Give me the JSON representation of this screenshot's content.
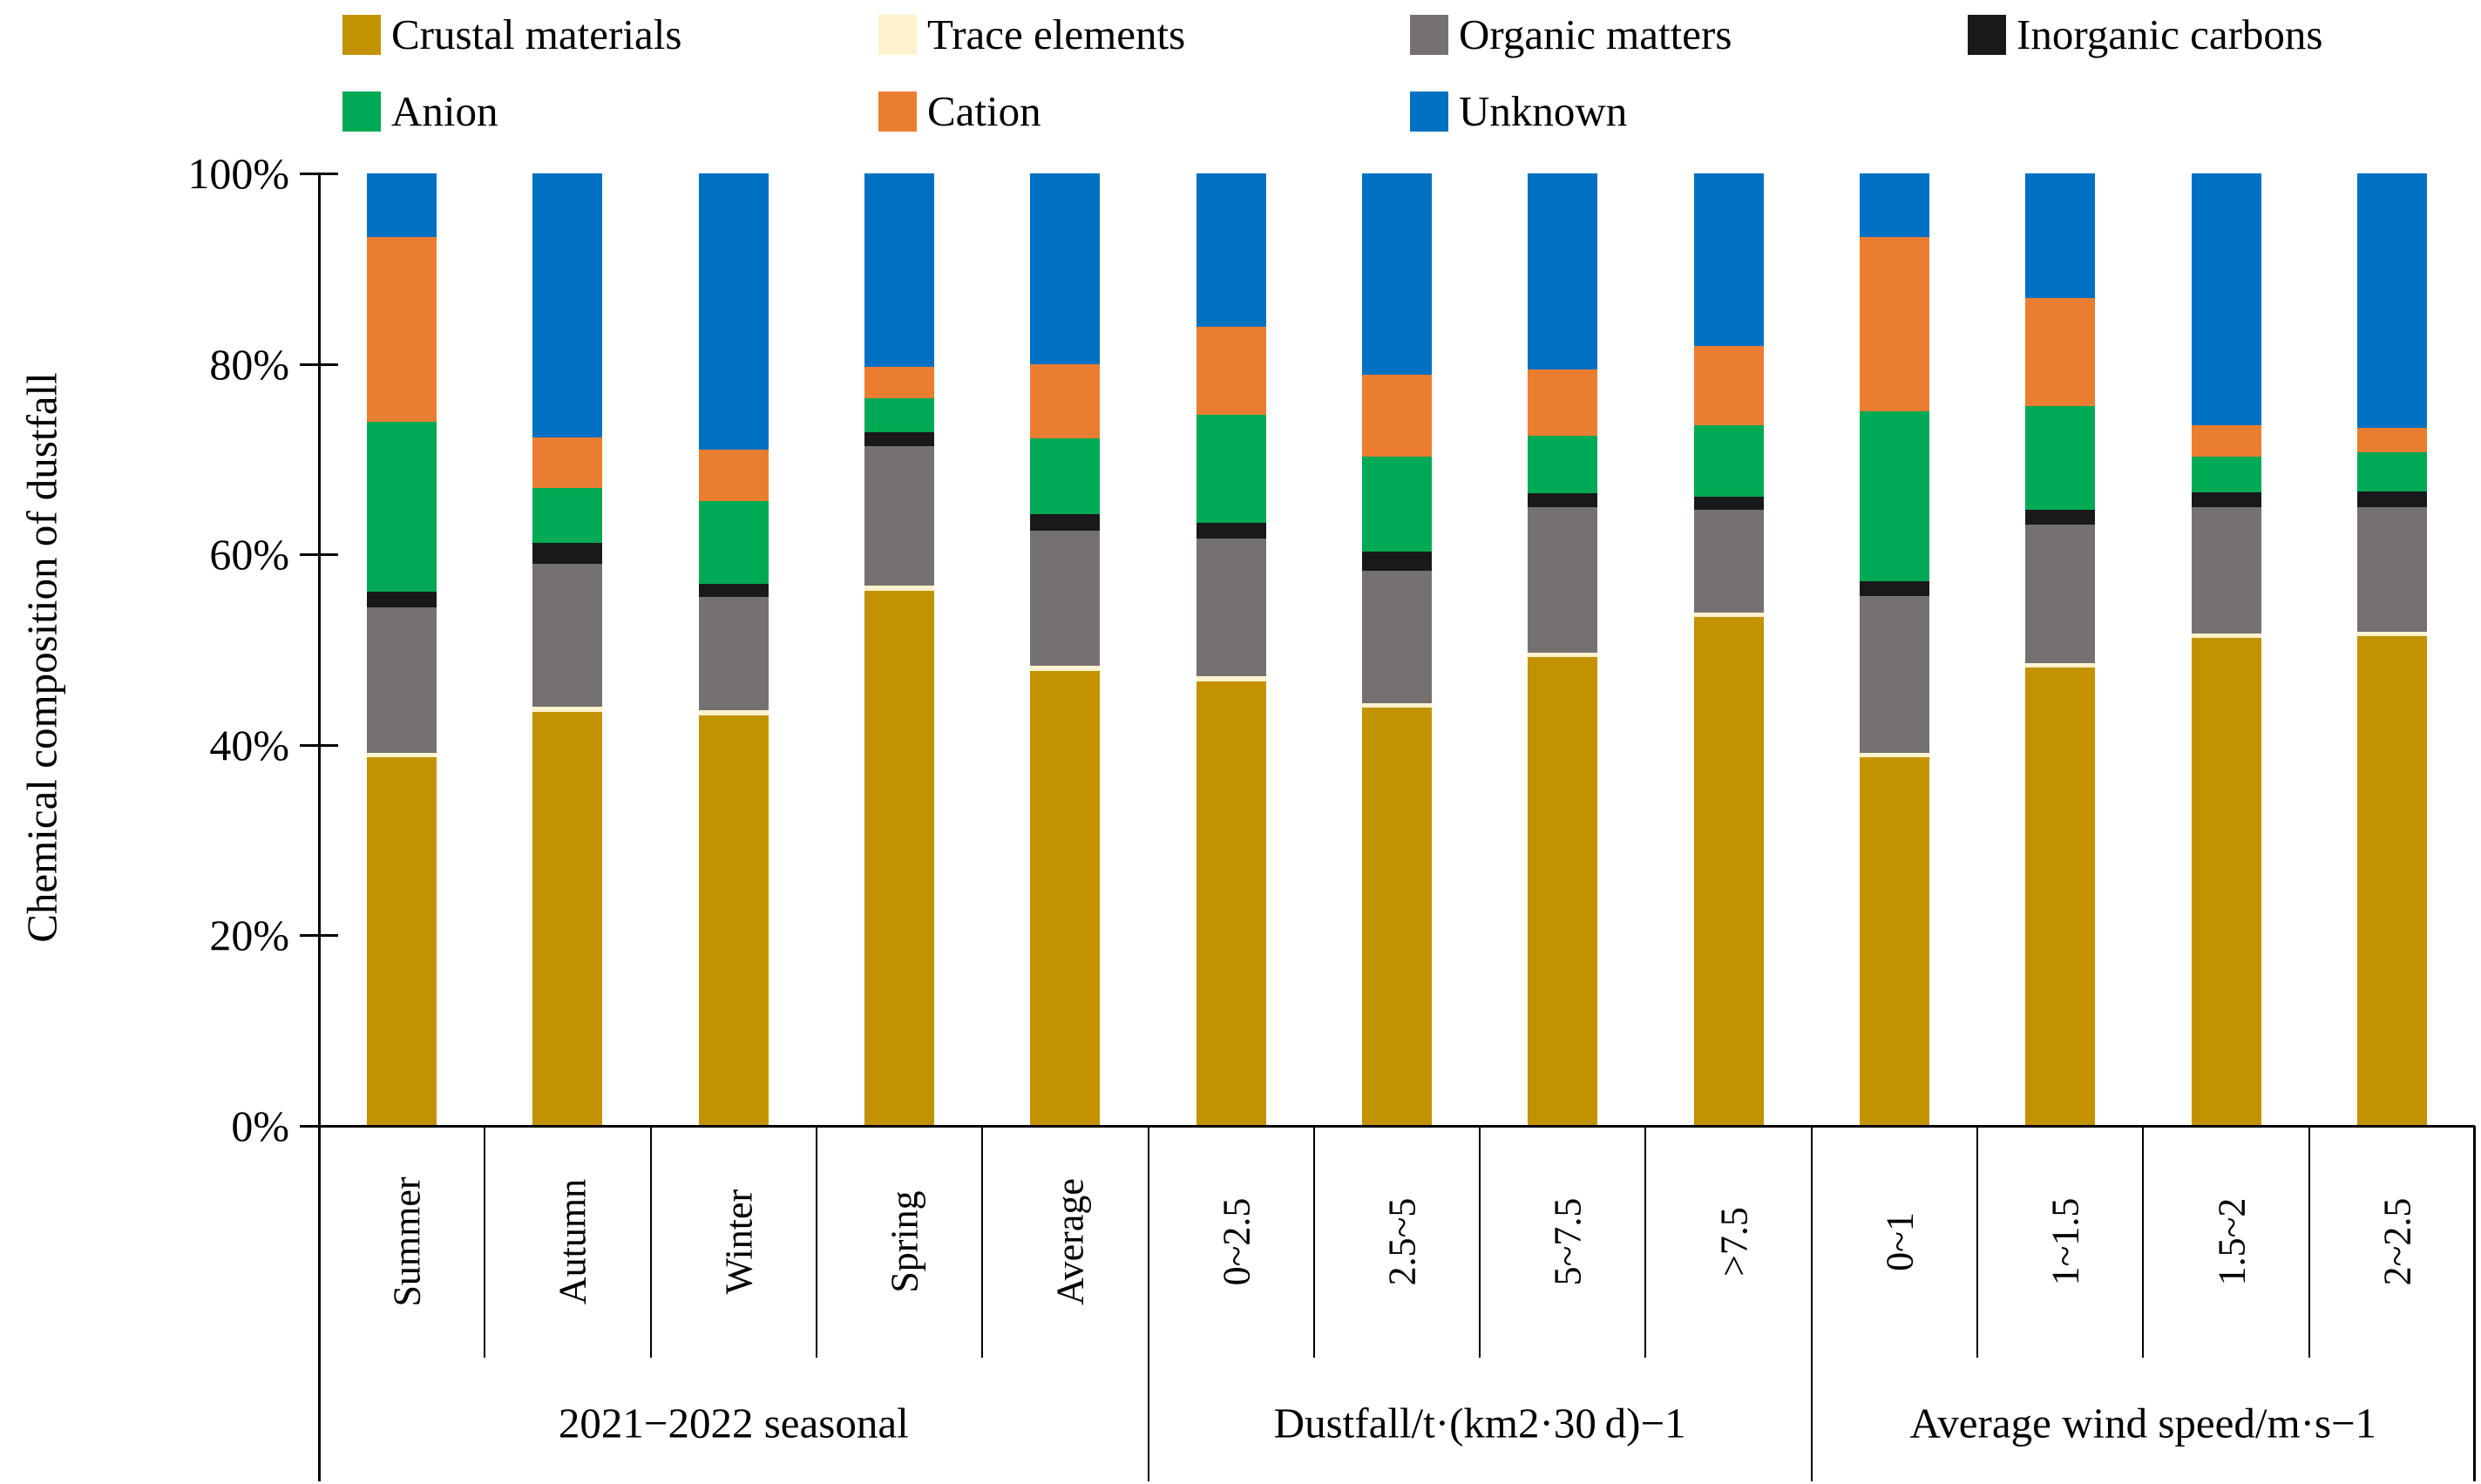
{
  "y_axis": {
    "title": "Chemical composition of dustfall",
    "ticks": [
      "100%",
      "80%",
      "60%",
      "40%",
      "20%",
      "0%"
    ]
  },
  "groups": [
    {
      "label": "2021−2022 seasonal",
      "categories": [
        "Summer",
        "Autumn",
        "Winter",
        "Spring",
        "Average"
      ]
    },
    {
      "label": "Dustfall/t·(km2·30 d)−1",
      "categories": [
        "0~2.5",
        "2.5~5",
        "5~7.5",
        ">7.5"
      ]
    },
    {
      "label": "Average wind speed/m·s−1",
      "categories": [
        "0~1",
        "1~1.5",
        "1.5~2",
        "2~2.5"
      ]
    }
  ],
  "chart_data": {
    "type": "bar",
    "stacked": true,
    "title": "",
    "xlabel": "",
    "ylabel": "Chemical composition of dustfall",
    "ylim": [
      0,
      100
    ],
    "grid": false,
    "legend_position": "top",
    "categories": [
      "Summer",
      "Autumn",
      "Winter",
      "Spring",
      "Average",
      "0~2.5",
      "2.5~5",
      "5~7.5",
      ">7.5",
      "0~1",
      "1~1.5",
      "1.5~2",
      "2~2.5"
    ],
    "series": [
      {
        "name": "Crustal materials",
        "color": "#C39200",
        "values": [
          38.7,
          43.5,
          43.1,
          56.2,
          47.8,
          46.7,
          43.9,
          49.2,
          53.4,
          38.7,
          48.1,
          51.2,
          51.4
        ]
      },
      {
        "name": "Trace elements",
        "color": "#FFF2CC",
        "values": [
          0.5,
          0.5,
          0.5,
          0.5,
          0.5,
          0.5,
          0.5,
          0.5,
          0.5,
          0.5,
          0.5,
          0.5,
          0.5
        ]
      },
      {
        "name": "Organic matters",
        "color": "#767171",
        "values": [
          15.2,
          15.0,
          11.9,
          14.7,
          14.2,
          14.5,
          13.9,
          15.3,
          10.8,
          16.4,
          14.5,
          13.3,
          13.1
        ]
      },
      {
        "name": "Inorganic carbons",
        "color": "#191919",
        "values": [
          1.7,
          2.2,
          1.4,
          1.4,
          1.7,
          1.6,
          2.0,
          1.4,
          1.4,
          1.6,
          1.6,
          1.5,
          1.6
        ]
      },
      {
        "name": "Anion",
        "color": "#00A953",
        "values": [
          17.8,
          5.8,
          8.7,
          3.6,
          8.0,
          11.4,
          10.0,
          6.1,
          7.5,
          17.8,
          10.9,
          3.8,
          4.1
        ]
      },
      {
        "name": "Cation",
        "color": "#EB7D31",
        "values": [
          19.4,
          5.3,
          5.4,
          3.3,
          7.8,
          9.2,
          8.6,
          6.9,
          8.3,
          18.3,
          11.3,
          3.3,
          2.6
        ]
      },
      {
        "name": "Unknown",
        "color": "#0071C2",
        "values": [
          6.7,
          27.7,
          29.0,
          20.3,
          20.0,
          16.1,
          21.1,
          20.6,
          18.1,
          6.7,
          13.1,
          26.4,
          26.7
        ]
      }
    ],
    "legend_columns_x": [
      393,
      1008,
      1618,
      2258
    ],
    "legend_rows_y": [
      14,
      102
    ]
  }
}
